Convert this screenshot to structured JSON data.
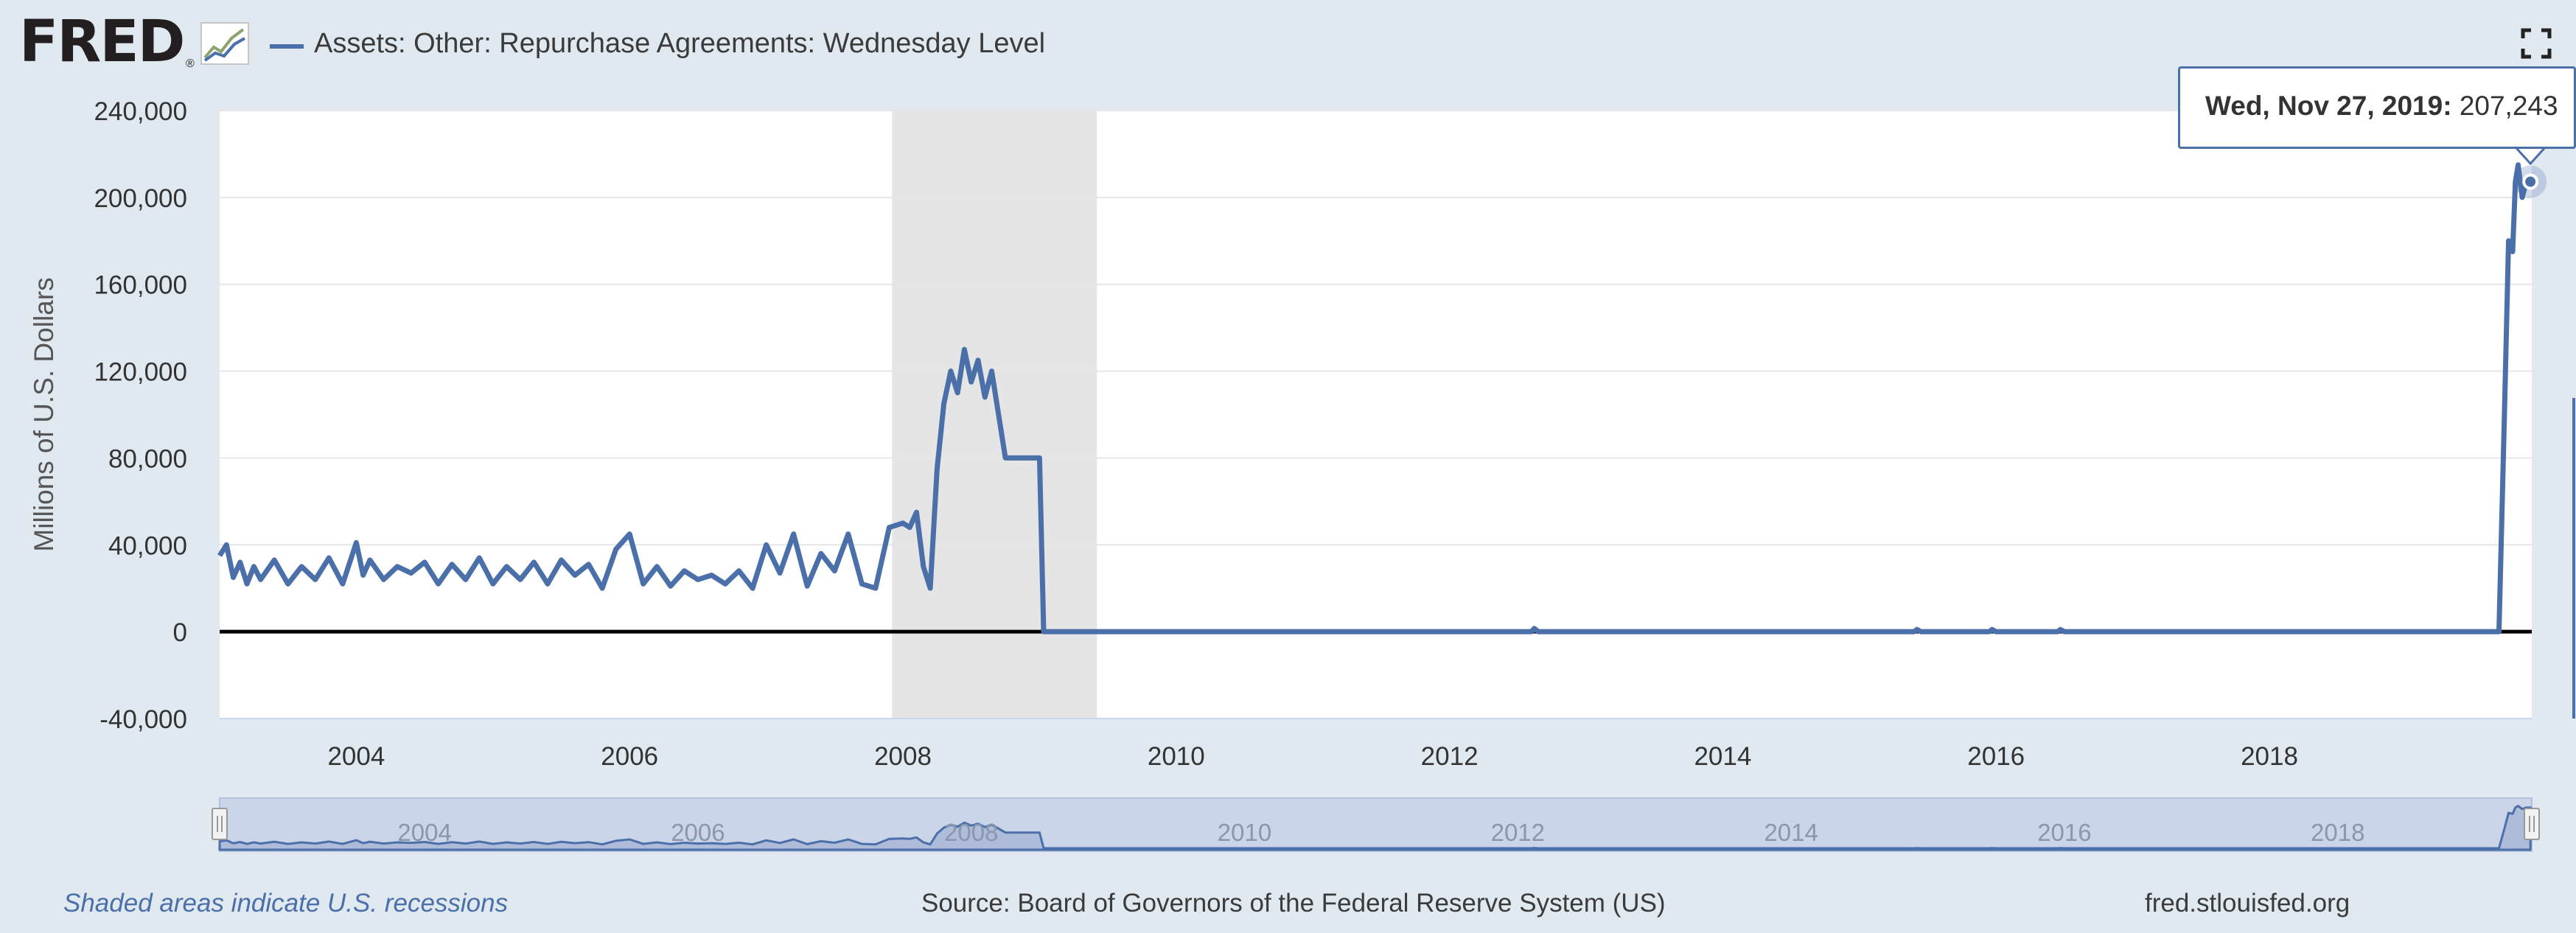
{
  "app": {
    "logo_text": "FRED",
    "logo_mark": "®"
  },
  "legend": {
    "label": "Assets: Other: Repurchase Agreements: Wednesday Level"
  },
  "tooltip": {
    "date": "Wed, Nov 27, 2019:",
    "value": "207,243"
  },
  "footer": {
    "note": "Shaded areas indicate U.S. recessions",
    "source": "Source: Board of Governors of the Federal Reserve System (US)",
    "site": "fred.stlouisfed.org"
  },
  "icons": {
    "logo": "fred-logo-chart-icon",
    "fullscreen": "fullscreen-icon"
  },
  "colors": {
    "series": "#4b6fa9",
    "recession": "#e5e5e5",
    "background": "#e1e9f0"
  },
  "chart_data": {
    "type": "line",
    "title": "",
    "xlabel": "",
    "ylabel": "Millions of U.S. Dollars",
    "xlim": [
      2003.0,
      2019.92
    ],
    "ylim": [
      -40000,
      240000
    ],
    "yticks": [
      -40000,
      0,
      40000,
      80000,
      120000,
      160000,
      200000,
      240000
    ],
    "ytick_labels": [
      "-40,000",
      "0",
      "40,000",
      "80,000",
      "120,000",
      "160,000",
      "200,000",
      "240,000"
    ],
    "xticks": [
      2004,
      2006,
      2008,
      2010,
      2012,
      2014,
      2016,
      2018
    ],
    "xtick_labels": [
      "2004",
      "2006",
      "2008",
      "2010",
      "2012",
      "2014",
      "2016",
      "2018"
    ],
    "navigator_ticks": [
      "2004",
      "2006",
      "2008",
      "2010",
      "2012",
      "2014",
      "2016",
      "2018"
    ],
    "recessions": [
      [
        2007.92,
        2009.42
      ]
    ],
    "grid": true,
    "legend_position": "top-left",
    "series": [
      {
        "name": "Assets: Other: Repurchase Agreements: Wednesday Level",
        "x": [
          2003.0,
          2003.05,
          2003.1,
          2003.15,
          2003.2,
          2003.25,
          2003.3,
          2003.4,
          2003.5,
          2003.6,
          2003.7,
          2003.8,
          2003.9,
          2004.0,
          2004.05,
          2004.1,
          2004.2,
          2004.3,
          2004.4,
          2004.5,
          2004.6,
          2004.7,
          2004.8,
          2004.9,
          2005.0,
          2005.1,
          2005.2,
          2005.3,
          2005.4,
          2005.5,
          2005.6,
          2005.7,
          2005.8,
          2005.9,
          2006.0,
          2006.1,
          2006.2,
          2006.3,
          2006.4,
          2006.5,
          2006.6,
          2006.7,
          2006.8,
          2006.9,
          2007.0,
          2007.1,
          2007.2,
          2007.3,
          2007.4,
          2007.5,
          2007.6,
          2007.7,
          2007.8,
          2007.9,
          2008.0,
          2008.05,
          2008.1,
          2008.15,
          2008.2,
          2008.25,
          2008.3,
          2008.35,
          2008.4,
          2008.45,
          2008.5,
          2008.55,
          2008.6,
          2008.65,
          2008.7,
          2008.75,
          2008.8,
          2008.9,
          2009.0,
          2009.03,
          2009.1,
          2009.2,
          2009.5,
          2010.0,
          2011.0,
          2012.0,
          2012.6,
          2012.62,
          2012.65,
          2013.0,
          2014.0,
          2015.0,
          2015.4,
          2015.42,
          2015.45,
          2015.95,
          2015.97,
          2016.0,
          2016.45,
          2016.47,
          2016.5,
          2017.0,
          2018.0,
          2019.0,
          2019.65,
          2019.68,
          2019.72,
          2019.75,
          2019.78,
          2019.8,
          2019.82,
          2019.85,
          2019.88,
          2019.91
        ],
        "y": [
          35000,
          40000,
          25000,
          32000,
          22000,
          30000,
          24000,
          33000,
          22000,
          30000,
          24000,
          34000,
          22000,
          41000,
          26000,
          33000,
          24000,
          30000,
          27000,
          32000,
          22000,
          31000,
          24000,
          34000,
          22000,
          30000,
          24000,
          32000,
          22000,
          33000,
          26000,
          31000,
          20000,
          38000,
          45000,
          22000,
          30000,
          21000,
          28000,
          24000,
          26000,
          22000,
          28000,
          20000,
          40000,
          27000,
          45000,
          21000,
          36000,
          28000,
          45000,
          22000,
          20000,
          48000,
          50000,
          48000,
          55000,
          30000,
          20000,
          75000,
          105000,
          120000,
          110000,
          130000,
          115000,
          125000,
          108000,
          120000,
          100000,
          80000,
          80000,
          80000,
          80000,
          0,
          0,
          0,
          0,
          0,
          0,
          0,
          0,
          1500,
          0,
          0,
          0,
          0,
          0,
          1000,
          0,
          0,
          1000,
          0,
          0,
          1000,
          0,
          0,
          0,
          0,
          0,
          0,
          100000,
          180000,
          175000,
          207243,
          215000,
          200000,
          207243,
          207243
        ]
      }
    ],
    "highlight_point": {
      "x": 2019.91,
      "y": 207243
    }
  }
}
